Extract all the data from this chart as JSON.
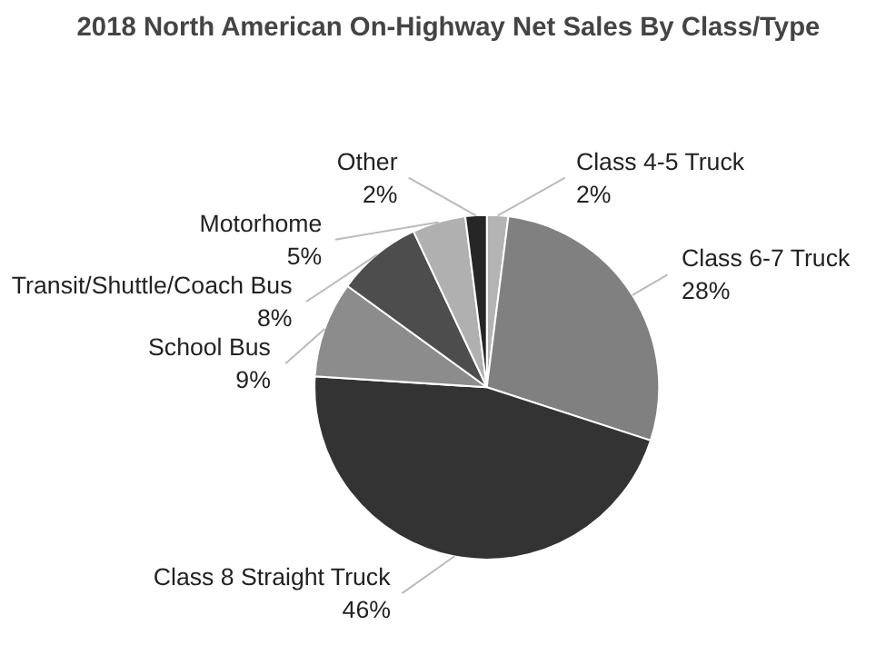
{
  "chart_data": {
    "type": "pie",
    "title": "2018 North American On-Highway Net Sales By Class/Type",
    "categories": [
      "Class 4-5 Truck",
      "Class 6-7 Truck",
      "Class 8 Straight Truck",
      "School Bus",
      "Transit/Shuttle/Coach Bus",
      "Motorhome",
      "Other"
    ],
    "values": [
      2,
      28,
      46,
      9,
      8,
      5,
      2
    ],
    "value_labels": [
      "2%",
      "28%",
      "46%",
      "9%",
      "8%",
      "5%",
      "2%"
    ],
    "colors": [
      "#b4b4b4",
      "#808080",
      "#333333",
      "#8c8c8c",
      "#4d4d4d",
      "#b0b0b0",
      "#262626"
    ]
  }
}
